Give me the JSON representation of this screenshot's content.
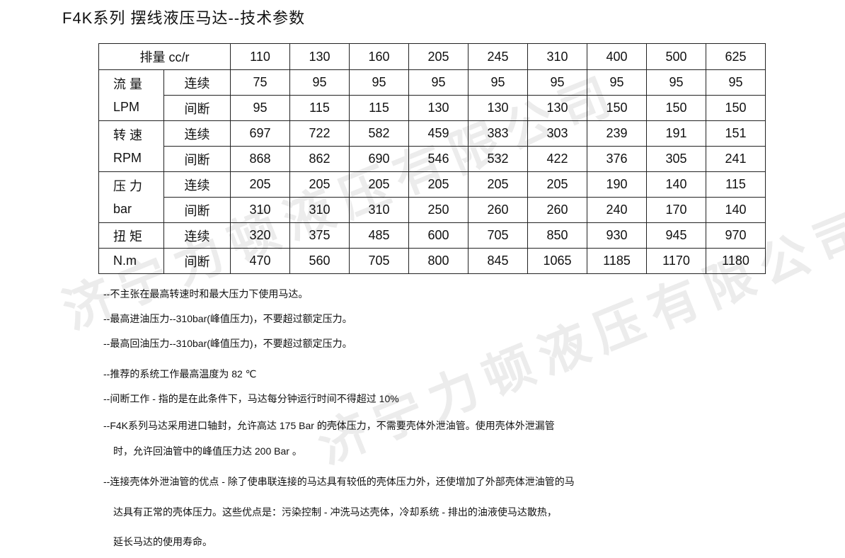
{
  "title": "F4K系列 摆线液压马达--技术参数",
  "watermark": "济宁力顿液压有限公司",
  "table": {
    "header_label": "排量 cc/r",
    "displacements": [
      "110",
      "130",
      "160",
      "205",
      "245",
      "310",
      "400",
      "500",
      "625"
    ],
    "groups": [
      {
        "label1": "流 量",
        "label2": "LPM",
        "split": false,
        "rows": [
          {
            "sub": "连续",
            "values": [
              "75",
              "95",
              "95",
              "95",
              "95",
              "95",
              "95",
              "95",
              "95"
            ]
          },
          {
            "sub": "间断",
            "values": [
              "95",
              "115",
              "115",
              "130",
              "130",
              "130",
              "150",
              "150",
              "150"
            ]
          }
        ]
      },
      {
        "label1": "转 速",
        "label2": "RPM",
        "split": false,
        "rows": [
          {
            "sub": "连续",
            "values": [
              "697",
              "722",
              "582",
              "459",
              "383",
              "303",
              "239",
              "191",
              "151"
            ]
          },
          {
            "sub": "间断",
            "values": [
              "868",
              "862",
              "690",
              "546",
              "532",
              "422",
              "376",
              "305",
              "241"
            ]
          }
        ]
      },
      {
        "label1": "压 力",
        "label2": "bar",
        "split": false,
        "rows": [
          {
            "sub": "连续",
            "values": [
              "205",
              "205",
              "205",
              "205",
              "205",
              "205",
              "190",
              "140",
              "115"
            ]
          },
          {
            "sub": "间断",
            "values": [
              "310",
              "310",
              "310",
              "250",
              "260",
              "260",
              "240",
              "170",
              "140"
            ]
          }
        ]
      },
      {
        "label1": "扭 矩",
        "label2": "N.m",
        "split": true,
        "rows": [
          {
            "sub": "连续",
            "values": [
              "320",
              "375",
              "485",
              "600",
              "705",
              "850",
              "930",
              "945",
              "970"
            ]
          },
          {
            "sub": "间断",
            "values": [
              "470",
              "560",
              "705",
              "800",
              "845",
              "1065",
              "1185",
              "1170",
              "1180"
            ]
          }
        ]
      }
    ]
  },
  "notes": [
    "--不主张在最高转速时和最大压力下使用马达。",
    "--最高进油压力--310bar(峰值压力)，不要超过额定压力。",
    "--最高回油压力--310bar(峰值压力)，不要超过额定压力。",
    "--推荐的系统工作最高温度为 82 ℃",
    "--间断工作 - 指的是在此条件下，马达每分钟运行时间不得超过 10%",
    "--F4K系列马达采用进口轴封，允许高达 175 Bar 的壳体压力，不需要壳体外泄油管。使用壳体外泄漏管",
    "时，允许回油管中的峰值压力达 200 Bar 。",
    "--连接壳体外泄油管的优点 - 除了使串联连接的马达具有较低的壳体压力外，还使增加了外部壳体泄油管的马",
    "达具有正常的壳体压力。这些优点是：污染控制 - 冲洗马达壳体，冷却系统 - 排出的油液使马达散热，",
    "延长马达的使用寿命。"
  ]
}
